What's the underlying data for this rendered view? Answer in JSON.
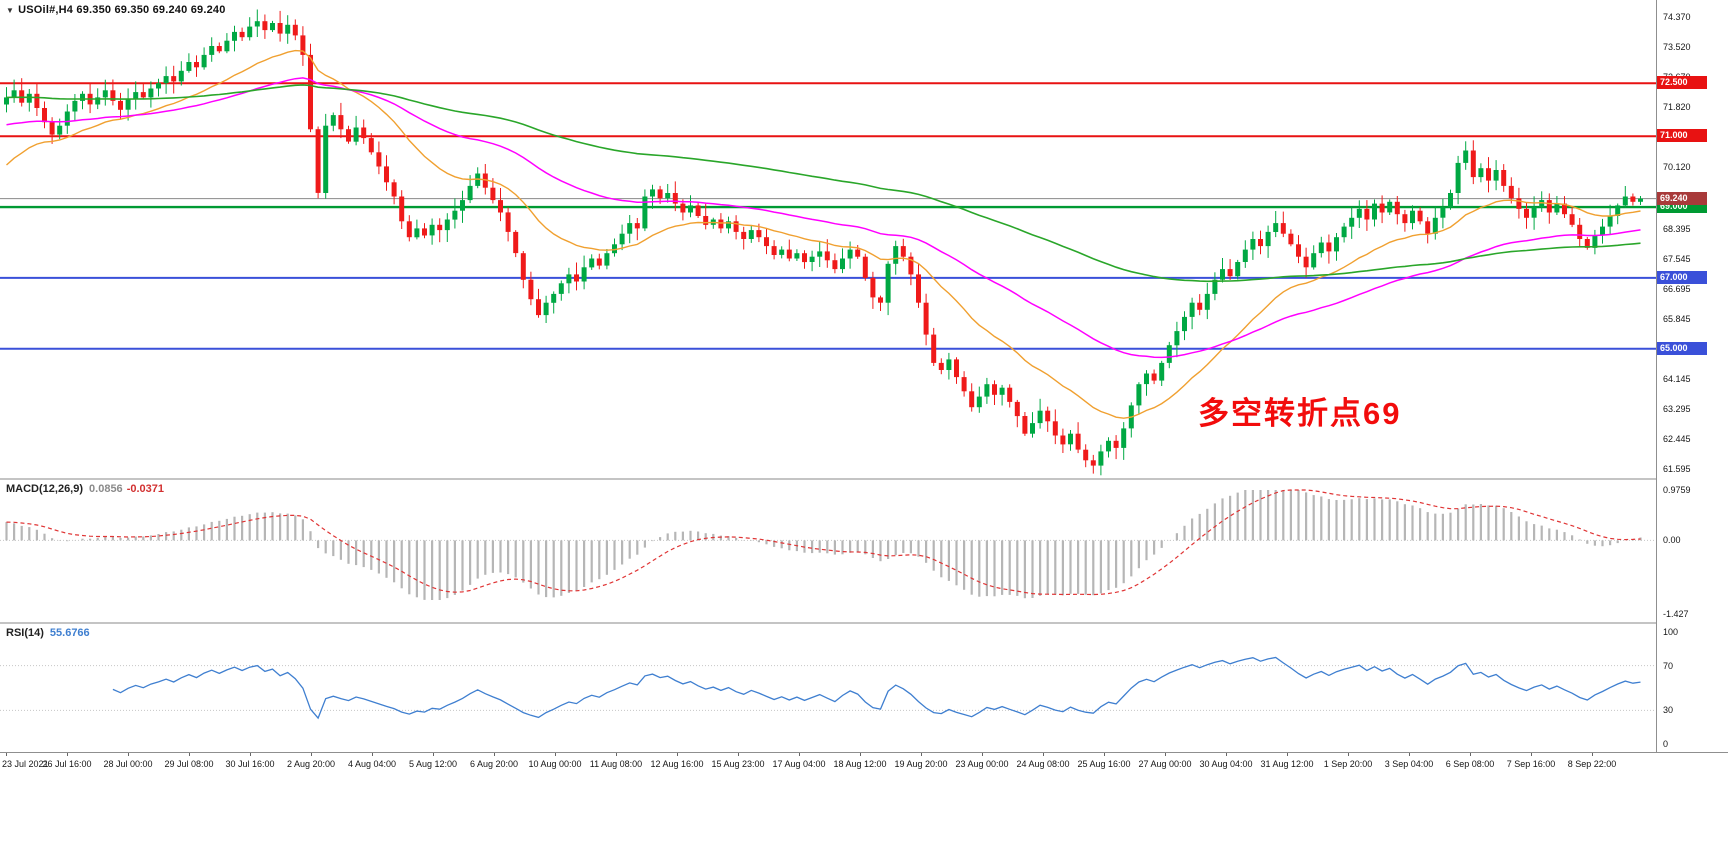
{
  "header": {
    "collapse_icon": "▼",
    "symbol_timeframe": "USOil#,H4",
    "ohlc": "69.350 69.350 69.240 69.240"
  },
  "main_chart": {
    "annotation": "多空转折点69"
  },
  "macd": {
    "name": "MACD(12,26,9)",
    "value_main": "0.0856",
    "value_signal": "-0.0371"
  },
  "rsi": {
    "name": "RSI(14)",
    "value": "55.6766"
  },
  "chart_data": {
    "type": "candlestick",
    "symbol": "USOil#",
    "timeframe": "H4",
    "ohlc_display": {
      "open": "69.350",
      "high": "69.350",
      "low": "69.240",
      "close": "69.240"
    },
    "price_range": {
      "min": 61.35,
      "max": 74.85
    },
    "open_seed": 71.9,
    "closes": [
      72.1,
      72.3,
      71.95,
      72.2,
      71.8,
      71.4,
      71.05,
      71.3,
      71.7,
      72.0,
      72.2,
      71.9,
      72.1,
      72.3,
      72.0,
      71.75,
      72.05,
      72.25,
      72.1,
      72.35,
      72.5,
      72.7,
      72.55,
      72.85,
      73.1,
      72.95,
      73.3,
      73.55,
      73.4,
      73.7,
      73.95,
      73.8,
      74.1,
      74.25,
      74.0,
      74.2,
      73.9,
      74.15,
      73.85,
      73.3,
      71.2,
      69.4,
      71.3,
      71.6,
      71.2,
      70.85,
      71.25,
      70.95,
      70.55,
      70.15,
      69.7,
      69.3,
      68.6,
      68.15,
      68.4,
      68.2,
      68.5,
      68.35,
      68.65,
      68.9,
      69.2,
      69.6,
      69.95,
      69.55,
      69.2,
      68.85,
      68.3,
      67.7,
      66.95,
      66.4,
      65.95,
      66.3,
      66.55,
      66.85,
      67.1,
      66.9,
      67.3,
      67.55,
      67.35,
      67.7,
      67.95,
      68.25,
      68.55,
      68.4,
      69.3,
      69.5,
      69.25,
      69.4,
      69.1,
      68.85,
      69.05,
      68.75,
      68.5,
      68.65,
      68.4,
      68.6,
      68.3,
      68.1,
      68.35,
      68.15,
      67.9,
      67.65,
      67.8,
      67.55,
      67.7,
      67.45,
      67.6,
      67.75,
      67.5,
      67.25,
      67.55,
      67.8,
      67.6,
      67.0,
      66.45,
      66.3,
      67.4,
      67.9,
      67.6,
      67.1,
      66.3,
      65.4,
      64.6,
      64.4,
      64.7,
      64.2,
      63.8,
      63.35,
      63.65,
      64.0,
      63.7,
      63.9,
      63.5,
      63.1,
      62.6,
      62.9,
      63.25,
      62.95,
      62.55,
      62.3,
      62.6,
      62.15,
      61.85,
      61.7,
      62.1,
      62.4,
      62.2,
      62.75,
      63.4,
      64.0,
      64.3,
      64.1,
      64.6,
      65.1,
      65.5,
      65.9,
      66.3,
      66.1,
      66.55,
      66.95,
      67.25,
      67.05,
      67.45,
      67.8,
      68.1,
      67.9,
      68.3,
      68.55,
      68.25,
      67.95,
      67.6,
      67.3,
      67.7,
      68.0,
      67.75,
      68.15,
      68.45,
      68.7,
      68.95,
      68.65,
      69.1,
      68.85,
      69.15,
      68.8,
      68.55,
      68.9,
      68.6,
      68.25,
      68.7,
      69.0,
      69.4,
      70.25,
      70.6,
      69.85,
      70.1,
      69.75,
      70.05,
      69.6,
      69.25,
      68.95,
      68.7,
      69.0,
      69.2,
      68.85,
      69.1,
      68.8,
      68.5,
      68.1,
      67.85,
      68.2,
      68.45,
      68.75,
      69.05,
      69.3,
      69.15,
      69.24
    ],
    "candle_colors": {
      "up": "#00a843",
      "down": "#ef1a1a"
    },
    "ma": [
      {
        "name": "ma-fast",
        "period": 21,
        "seed": 70.0,
        "color": "#f0a030",
        "width": 1.4
      },
      {
        "name": "ma-mid",
        "period": 55,
        "seed": 71.3,
        "color": "#ff00ff",
        "width": 1.5
      },
      {
        "name": "ma-slow",
        "period": 130,
        "seed": 72.1,
        "color": "#2aa62a",
        "width": 1.6
      }
    ],
    "hlines": [
      {
        "label": "72.500",
        "price": 72.5,
        "color": "#e81212",
        "width": 2
      },
      {
        "label": "71.000",
        "price": 71.0,
        "color": "#e81212",
        "width": 2
      },
      {
        "label": "69.000",
        "price": 69.0,
        "color": "#009a33",
        "width": 2.4
      },
      {
        "label": "67.000",
        "price": 67.0,
        "color": "#3a50d9",
        "width": 2
      },
      {
        "label": "65.000",
        "price": 65.0,
        "color": "#3a50d9",
        "width": 2
      }
    ],
    "bid_line": {
      "label": "69.240",
      "price": 69.24,
      "line_color": "#8a8a8a",
      "badge_bg": "#a83a3a"
    },
    "price_axis_ticks": [
      {
        "label": "74.370",
        "value": 74.37
      },
      {
        "label": "73.520",
        "value": 73.52
      },
      {
        "label": "72.670",
        "value": 72.67
      },
      {
        "label": "71.820",
        "value": 71.82
      },
      {
        "label": "70.970",
        "value": 70.97
      },
      {
        "label": "70.120",
        "value": 70.12
      },
      {
        "label": "68.395",
        "value": 68.395
      },
      {
        "label": "67.545",
        "value": 67.545
      },
      {
        "label": "66.695",
        "value": 66.695
      },
      {
        "label": "65.845",
        "value": 65.845
      },
      {
        "label": "64.995",
        "value": 64.995
      },
      {
        "label": "64.145",
        "value": 64.145
      },
      {
        "label": "63.295",
        "value": 63.295
      },
      {
        "label": "62.445",
        "value": 62.445
      },
      {
        "label": "61.595",
        "value": 61.595
      }
    ],
    "macd_indicator": {
      "fast": 12,
      "slow": 26,
      "signal": 9,
      "seed_fast": 72.3,
      "seed_slow": 71.9,
      "histogram_color": "#b6b6b6",
      "signal_color": "#e03535",
      "axis": [
        {
          "label": "0.9759",
          "value": 0.9759
        },
        {
          "label": "0.00",
          "value": 0
        },
        {
          "label": "-1.427",
          "value": -1.427
        }
      ]
    },
    "rsi_indicator": {
      "period": 14,
      "line_color": "#3f7fd0",
      "levels": [
        70,
        30
      ],
      "axis": [
        {
          "label": "100",
          "value": 100
        },
        {
          "label": "70",
          "value": 70
        },
        {
          "label": "30",
          "value": 30
        },
        {
          "label": "0",
          "value": 0
        }
      ]
    },
    "time_labels": [
      "23 Jul 2021",
      "26 Jul 16:00",
      "28 Jul 00:00",
      "29 Jul 08:00",
      "30 Jul 16:00",
      "2 Aug 20:00",
      "4 Aug 04:00",
      "5 Aug 12:00",
      "6 Aug 20:00",
      "10 Aug 00:00",
      "11 Aug 08:00",
      "12 Aug 16:00",
      "15 Aug 23:00",
      "17 Aug 04:00",
      "18 Aug 12:00",
      "19 Aug 20:00",
      "23 Aug 00:00",
      "24 Aug 08:00",
      "25 Aug 16:00",
      "27 Aug 00:00",
      "30 Aug 04:00",
      "31 Aug 12:00",
      "1 Sep 20:00",
      "3 Sep 04:00",
      "6 Sep 08:00",
      "7 Sep 16:00",
      "8 Sep 22:00"
    ]
  }
}
